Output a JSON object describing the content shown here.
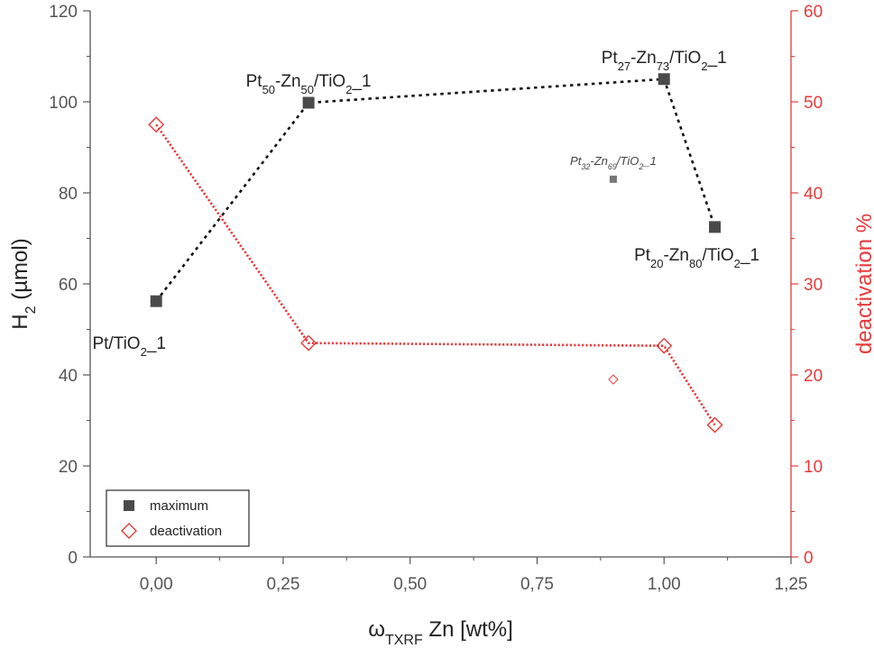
{
  "chart_data": {
    "type": "scatter",
    "x_axis": {
      "label_main": "ω",
      "label_sub": "TXRF",
      "label_rest": " Zn [wt%]",
      "range": [
        -0.13,
        1.25
      ],
      "ticks": [
        0.0,
        0.25,
        0.5,
        0.75,
        1.0,
        1.25
      ],
      "tick_labels": [
        "0,00",
        "0,25",
        "0,50",
        "0,75",
        "1,00",
        "1,25"
      ]
    },
    "y_left": {
      "label_main": "H",
      "label_sub": "2",
      "label_rest": " (µmol)",
      "range": [
        0,
        120
      ],
      "ticks": [
        0,
        20,
        40,
        60,
        80,
        100,
        120
      ],
      "tick_labels": [
        "0",
        "20",
        "40",
        "60",
        "80",
        "100",
        "120"
      ],
      "color": "#555555"
    },
    "y_right": {
      "label": "deactivation %",
      "range": [
        0,
        60
      ],
      "ticks": [
        0,
        10,
        20,
        30,
        40,
        50,
        60
      ],
      "tick_labels": [
        "0",
        "10",
        "20",
        "30",
        "40",
        "50",
        "60"
      ],
      "color": "#e8393a"
    },
    "series": [
      {
        "name": "maximum",
        "axis": "left",
        "marker": "square",
        "color": "#4a4a4a",
        "line": "dotted-black",
        "points": [
          {
            "x": 0.0,
            "y": 56.2
          },
          {
            "x": 0.3,
            "y": 99.8
          },
          {
            "x": 1.0,
            "y": 105.0
          },
          {
            "x": 1.1,
            "y": 72.5
          }
        ],
        "extra_points": [
          {
            "x": 0.9,
            "y": 83.0
          }
        ]
      },
      {
        "name": "deactivation",
        "axis": "right",
        "marker": "diamond-open",
        "color": "#e8393a",
        "line": "dotted-red",
        "points": [
          {
            "x": 0.0,
            "y": 47.5
          },
          {
            "x": 0.3,
            "y": 23.5
          },
          {
            "x": 1.0,
            "y": 23.2
          },
          {
            "x": 1.1,
            "y": 14.5
          }
        ],
        "extra_points": [
          {
            "x": 0.9,
            "y": 19.5
          }
        ]
      }
    ],
    "annotations": [
      {
        "parts": [
          [
            "Pt/TiO",
            ""
          ],
          [
            "2",
            "sub"
          ],
          [
            "_1",
            ""
          ]
        ],
        "x": 0.0,
        "y": 56.2,
        "anchor": "below-left",
        "style": "normal"
      },
      {
        "parts": [
          [
            "Pt",
            ""
          ],
          [
            "50",
            "sub"
          ],
          [
            "-Zn",
            ""
          ],
          [
            "50",
            "sub"
          ],
          [
            "/TiO",
            ""
          ],
          [
            "2",
            "sub"
          ],
          [
            "_1",
            ""
          ]
        ],
        "x": 0.3,
        "y": 99.8,
        "anchor": "above",
        "style": "normal"
      },
      {
        "parts": [
          [
            "Pt",
            ""
          ],
          [
            "27",
            "sub"
          ],
          [
            "-Zn",
            ""
          ],
          [
            "73",
            "sub"
          ],
          [
            "/TiO",
            ""
          ],
          [
            "2",
            "sub"
          ],
          [
            "_1",
            ""
          ]
        ],
        "x": 1.0,
        "y": 105.0,
        "anchor": "above",
        "style": "normal"
      },
      {
        "parts": [
          [
            "Pt",
            ""
          ],
          [
            "20",
            "sub"
          ],
          [
            "-Zn",
            ""
          ],
          [
            "80",
            "sub"
          ],
          [
            "/TiO",
            ""
          ],
          [
            "2",
            "sub"
          ],
          [
            "_1",
            ""
          ]
        ],
        "x": 1.1,
        "y": 72.5,
        "anchor": "below",
        "style": "normal"
      },
      {
        "parts": [
          [
            "Pt",
            ""
          ],
          [
            "32",
            "sub"
          ],
          [
            "-Zn",
            ""
          ],
          [
            "69",
            "sub"
          ],
          [
            "/TiO",
            ""
          ],
          [
            "2",
            "sub"
          ],
          [
            "_1",
            ""
          ]
        ],
        "x": 0.9,
        "y": 83.0,
        "anchor": "above",
        "style": "small"
      }
    ],
    "legend": {
      "placement": "bottom-left",
      "entries": [
        {
          "label": "maximum",
          "marker": "square",
          "color": "#4a4a4a"
        },
        {
          "label": "deactivation",
          "marker": "diamond-open",
          "color": "#e8393a"
        }
      ]
    },
    "grid": false
  }
}
